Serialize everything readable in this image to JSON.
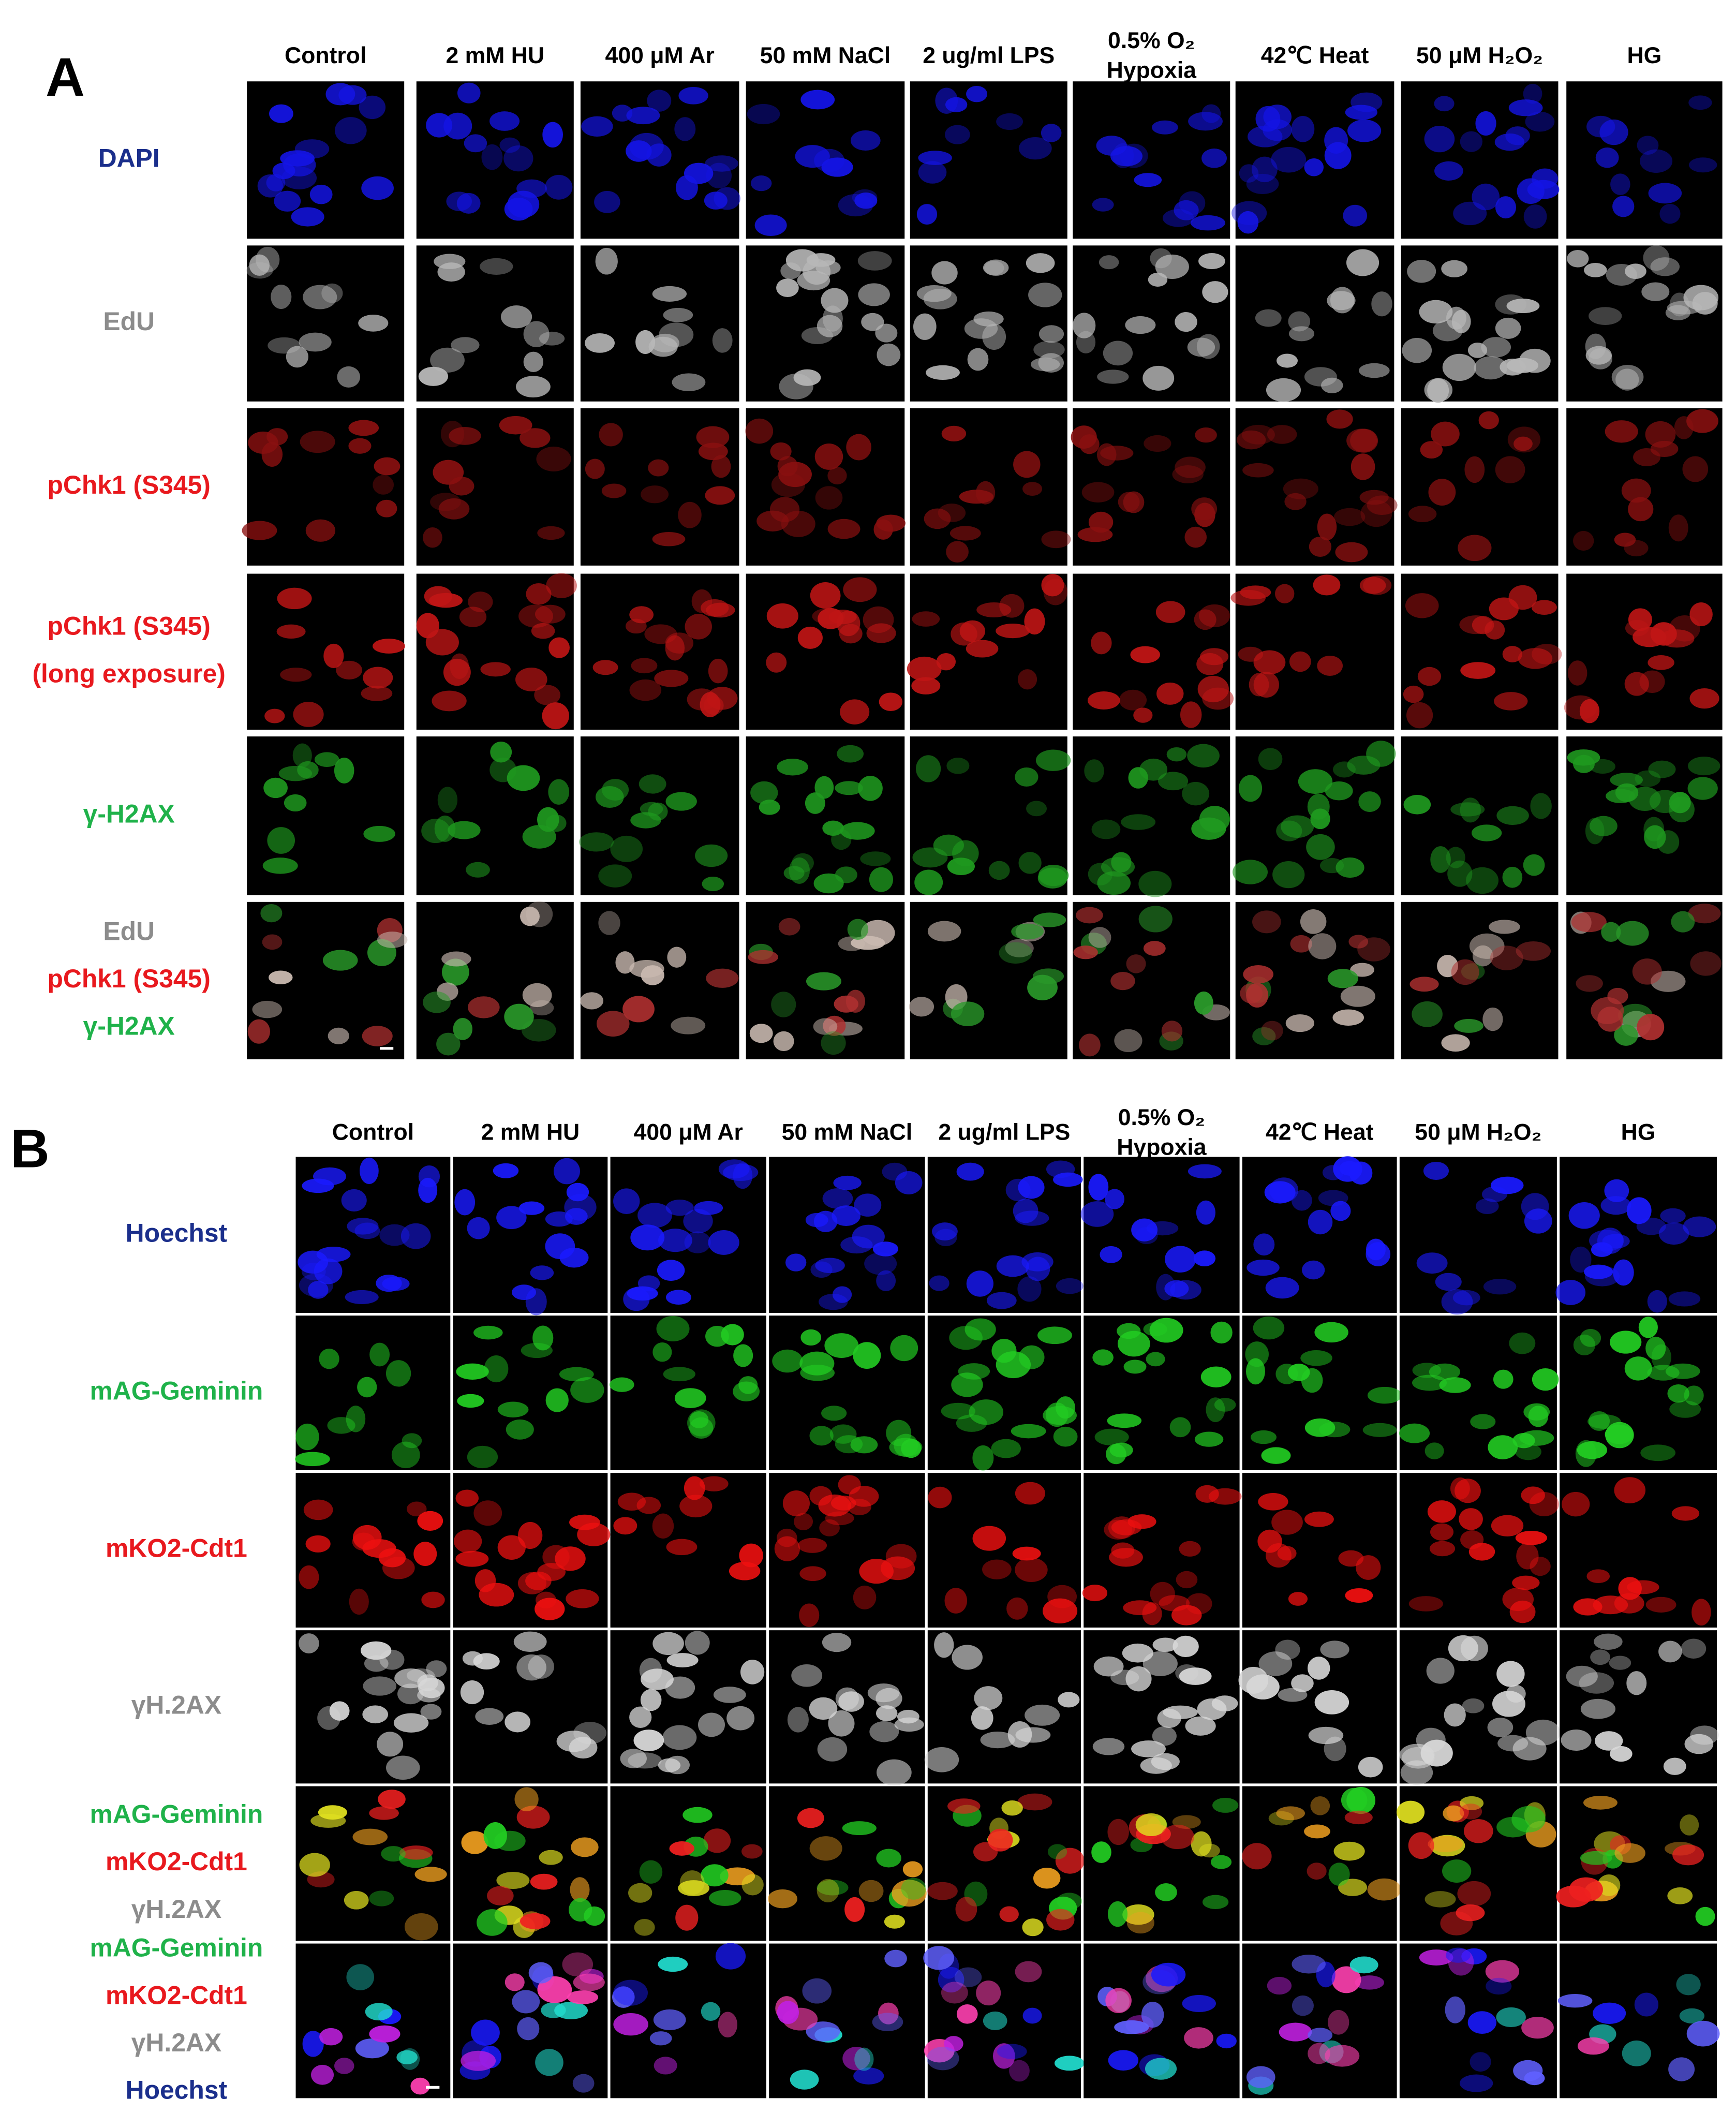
{
  "panels": [
    {
      "label": "A",
      "columns": [
        [
          "Control"
        ],
        [
          "2 mM HU"
        ],
        [
          "400 μM Ar"
        ],
        [
          "50 mM NaCl"
        ],
        [
          "2 ug/ml LPS"
        ],
        [
          "0.5% O₂",
          "Hypoxia"
        ],
        [
          "42℃ Heat"
        ],
        [
          "50 μM H₂O₂"
        ],
        [
          "HG"
        ]
      ],
      "rows": [
        [
          {
            "text": "DAPI",
            "color": "#1b2f8c"
          }
        ],
        [
          {
            "text": "EdU",
            "color": "#8c8c8c"
          }
        ],
        [
          {
            "text": "pChk1 (S345)",
            "color": "#e8191e"
          }
        ],
        [
          {
            "text": "pChk1 (S345)",
            "color": "#e8191e"
          },
          {
            "text": "(long exposure)",
            "color": "#e8191e"
          }
        ],
        [
          {
            "text": "γ-H2AX",
            "color": "#1fb24a"
          }
        ],
        [
          {
            "text": "EdU",
            "color": "#8c8c8c"
          },
          {
            "text": "pChk1 (S345)",
            "color": "#e8191e"
          },
          {
            "text": "γ-H2AX",
            "color": "#1fb24a"
          }
        ]
      ]
    },
    {
      "label": "B",
      "columns": [
        [
          "Control"
        ],
        [
          "2 mM HU"
        ],
        [
          "400 μM Ar"
        ],
        [
          "50 mM NaCl"
        ],
        [
          "2 ug/ml LPS"
        ],
        [
          "0.5% O₂",
          "Hypoxia"
        ],
        [
          "42℃ Heat"
        ],
        [
          "50 μM H₂O₂"
        ],
        [
          "HG"
        ]
      ],
      "rows": [
        [
          {
            "text": "Hoechst",
            "color": "#1b2f8c"
          }
        ],
        [
          {
            "text": "mAG-Geminin",
            "color": "#1fb24a"
          }
        ],
        [
          {
            "text": "mKO2-Cdt1",
            "color": "#e8191e"
          }
        ],
        [
          {
            "text": "γH.2AX",
            "color": "#8c8c8c"
          }
        ],
        [
          {
            "text": "mAG-Geminin",
            "color": "#1fb24a"
          },
          {
            "text": "mKO2-Cdt1",
            "color": "#e8191e"
          },
          {
            "text": "γH.2AX",
            "color": "#8c8c8c"
          }
        ],
        [
          {
            "text": "mAG-Geminin",
            "color": "#1fb24a"
          },
          {
            "text": "mKO2-Cdt1",
            "color": "#e8191e"
          },
          {
            "text": "γH.2AX",
            "color": "#8c8c8c"
          },
          {
            "text": "Hoechst",
            "color": "#1b2f8c"
          }
        ]
      ]
    }
  ]
}
